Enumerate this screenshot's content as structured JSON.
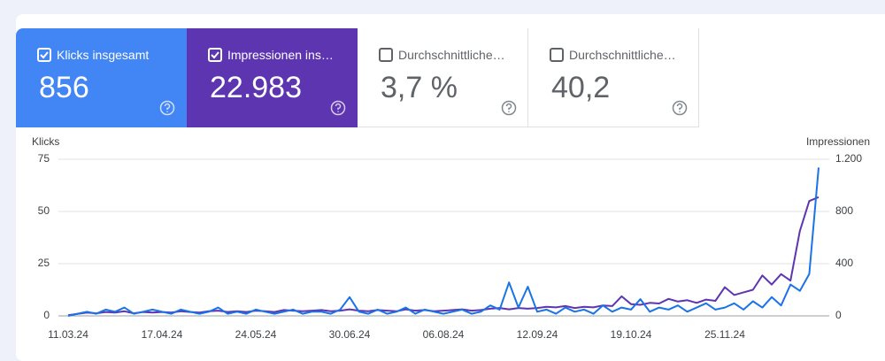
{
  "cards": [
    {
      "label": "Klicks insgesamt",
      "value": "856",
      "checked": true,
      "color": "#4285f4"
    },
    {
      "label": "Impressionen ins…",
      "value": "22.983",
      "checked": true,
      "color": "#5e35b1"
    },
    {
      "label": "Durchschnittliche…",
      "value": "3,7 %",
      "checked": false,
      "color": "#ffffff"
    },
    {
      "label": "Durchschnittliche…",
      "value": "40,2",
      "checked": false,
      "color": "#ffffff"
    }
  ],
  "chart_data": {
    "type": "line",
    "y_label": "Klicks",
    "y2_label": "Impressionen",
    "categories": [
      "11.03.24",
      null,
      null,
      null,
      null,
      null,
      null,
      null,
      null,
      null,
      "17.04.24",
      null,
      null,
      null,
      null,
      null,
      null,
      null,
      null,
      null,
      "24.05.24",
      null,
      null,
      null,
      null,
      null,
      null,
      null,
      null,
      null,
      "30.06.24",
      null,
      null,
      null,
      null,
      null,
      null,
      null,
      null,
      null,
      "06.08.24",
      null,
      null,
      null,
      null,
      null,
      null,
      null,
      null,
      null,
      "12.09.24",
      null,
      null,
      null,
      null,
      null,
      null,
      null,
      null,
      null,
      "19.10.24",
      null,
      null,
      null,
      null,
      null,
      null,
      null,
      null,
      null,
      "25.11.24",
      null,
      null,
      null,
      null,
      null,
      null,
      null,
      null,
      null,
      null
    ],
    "series": [
      {
        "name": "Klicks",
        "color": "#1a73e8",
        "axis": "y",
        "values": [
          0,
          1,
          2,
          1,
          3,
          2,
          4,
          1,
          2,
          3,
          2,
          1,
          3,
          2,
          1,
          2,
          4,
          1,
          2,
          1,
          3,
          2,
          1,
          2,
          3,
          1,
          2,
          2,
          1,
          3,
          9,
          2,
          1,
          3,
          1,
          2,
          4,
          1,
          3,
          2,
          1,
          2,
          3,
          1,
          2,
          5,
          3,
          16,
          4,
          14,
          2,
          3,
          1,
          4,
          2,
          3,
          1,
          5,
          2,
          4,
          3,
          8,
          2,
          4,
          3,
          5,
          2,
          4,
          6,
          3,
          4,
          6,
          3,
          7,
          4,
          9,
          5,
          15,
          12,
          20,
          71
        ]
      },
      {
        "name": "Impressionen",
        "color": "#5e35b1",
        "axis": "y2",
        "values": [
          5,
          15,
          25,
          20,
          30,
          25,
          35,
          20,
          30,
          25,
          30,
          25,
          35,
          30,
          25,
          35,
          40,
          30,
          35,
          30,
          40,
          35,
          30,
          45,
          40,
          35,
          40,
          45,
          35,
          40,
          50,
          40,
          35,
          45,
          40,
          35,
          50,
          40,
          45,
          35,
          40,
          45,
          50,
          40,
          45,
          55,
          60,
          50,
          60,
          55,
          60,
          70,
          65,
          75,
          60,
          70,
          65,
          80,
          75,
          150,
          90,
          85,
          100,
          95,
          130,
          110,
          120,
          100,
          125,
          115,
          220,
          160,
          180,
          200,
          310,
          240,
          320,
          270,
          650,
          880,
          910
        ]
      }
    ],
    "ylim": [
      0,
      75
    ],
    "yticks": [
      0,
      25,
      50,
      75
    ],
    "y2lim": [
      0,
      1200
    ],
    "y2ticks": [
      0,
      400,
      800,
      {
        "value": 1200,
        "label": "1.200"
      }
    ],
    "grid": true
  }
}
